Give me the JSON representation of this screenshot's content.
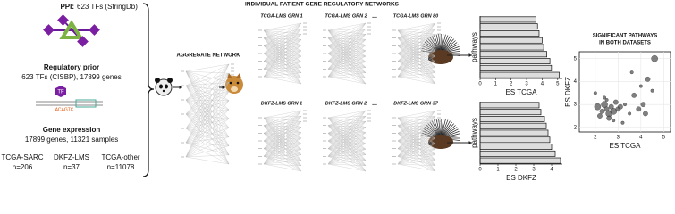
{
  "inputs": {
    "ppi": {
      "label": "PPI:",
      "detail": "623 TFs (StringDb)"
    },
    "prior": {
      "title": "Regulatory prior",
      "detail": "623 TFs (CISBP), 17899 genes",
      "tf": "TF",
      "motif": "ACAGTC"
    },
    "expression": {
      "title": "Gene expression",
      "detail": "17899 genes, 11321 samples",
      "cohorts": [
        {
          "name": "TCGA-SARC",
          "n": "n=206"
        },
        {
          "name": "DKFZ-LMS",
          "n": "n=37"
        },
        {
          "name": "TCGA-other",
          "n": "n=11078"
        }
      ]
    }
  },
  "networks": {
    "title": "INDIVIDUAL PATIENT GENE REGULATORY NETWORKS",
    "aggregate": "AGGREGATE NETWORK",
    "tcga": [
      "TCGA-LMS GRN 1",
      "TCGA-LMS GRN 2",
      "...",
      "TCGA-LMS GRN 80"
    ],
    "dkfz": [
      "DKFZ-LMS GRN 1",
      "DKFZ-LMS GRN 2",
      "...",
      "DKFZ-LMS GRN 37"
    ]
  },
  "bar_charts": [
    {
      "y_label": "pathways",
      "x_label": "ES TCGA",
      "xlim": [
        0,
        5.3
      ],
      "xticks": [
        0,
        1,
        2,
        3,
        4,
        5
      ],
      "values": [
        3.6,
        3.7,
        3.8,
        4.0,
        4.1,
        4.3,
        4.5,
        4.6,
        5.1
      ]
    },
    {
      "y_label": "pathways",
      "x_label": "ES DKFZ",
      "xlim": [
        0,
        4.6
      ],
      "xticks": [
        0,
        1,
        2,
        3,
        4
      ],
      "values": [
        3.3,
        3.4,
        3.6,
        3.7,
        3.8,
        3.9,
        4.0,
        4.2,
        4.5
      ]
    }
  ],
  "scatter": {
    "title_lines": [
      "SIGNIFICANT PATHWAYS",
      "IN BOTH DATASETS"
    ],
    "x_label": "ES TCGA",
    "y_label": "ES DKFZ",
    "xlim": [
      1.3,
      5.3
    ],
    "ylim": [
      1.8,
      5.3
    ],
    "xticks": [
      2,
      3,
      4,
      5
    ],
    "yticks": [
      2,
      3,
      4,
      5
    ],
    "x": [
      2.1,
      2.3,
      2.4,
      2.5,
      2.6,
      2.7,
      2.8,
      2.9,
      3.0,
      2.2,
      2.5,
      2.6,
      2.8,
      3.1,
      3.3,
      3.5,
      3.7,
      4.0,
      4.3,
      4.1,
      4.5,
      3.9,
      3.2,
      2.4,
      4.6,
      2.0,
      3.6,
      4.2
    ],
    "y": [
      2.9,
      2.7,
      3.0,
      2.8,
      2.6,
      2.9,
      2.7,
      3.1,
      2.8,
      2.5,
      3.2,
      2.4,
      2.3,
      2.9,
      3.0,
      2.6,
      3.4,
      3.8,
      4.1,
      3.0,
      3.6,
      2.8,
      2.2,
      3.3,
      5.0,
      3.5,
      4.4,
      2.6
    ],
    "size": [
      3,
      2,
      3,
      2,
      3,
      2,
      3,
      2,
      2,
      2,
      1,
      2,
      1,
      2,
      1,
      1,
      2,
      1,
      2,
      2,
      1,
      2,
      1,
      1,
      3,
      1,
      1,
      2
    ]
  }
}
